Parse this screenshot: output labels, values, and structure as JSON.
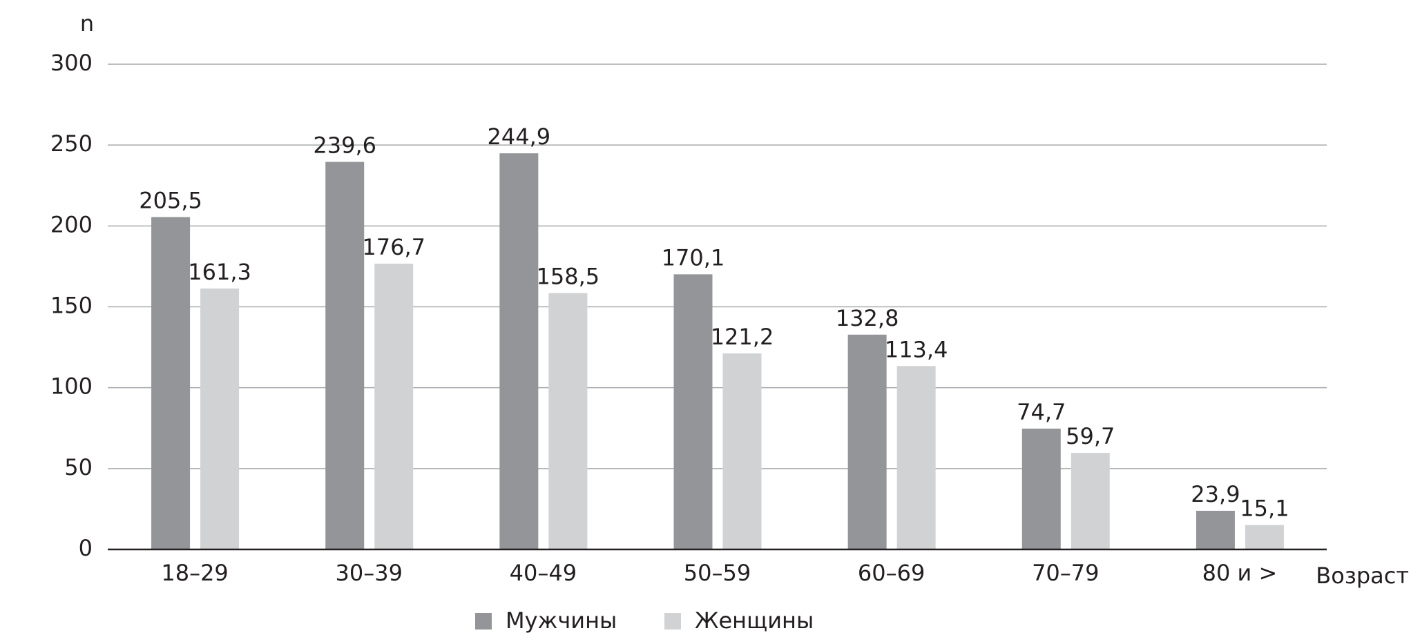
{
  "chart_data": {
    "type": "bar",
    "ylabel": "n",
    "xlabel": "Возраст",
    "categories": [
      "18–29",
      "30–39",
      "40–49",
      "50–59",
      "60–69",
      "70–79",
      "80 и >"
    ],
    "series": [
      {
        "name": "Мужчины",
        "color": "#939598",
        "values": [
          205.5,
          239.6,
          244.9,
          170.1,
          132.8,
          74.7,
          23.9
        ],
        "value_labels": [
          "205,5",
          "239,6",
          "244,9",
          "170,1",
          "132,8",
          "74,7",
          "23,9"
        ]
      },
      {
        "name": "Женщины",
        "color": "#d1d2d4",
        "values": [
          161.3,
          176.7,
          158.5,
          121.2,
          113.4,
          59.7,
          15.1
        ],
        "value_labels": [
          "161,3",
          "176,7",
          "158,5",
          "121,2",
          "113,4",
          "59,7",
          "15,1"
        ]
      }
    ],
    "ylim": [
      0,
      300
    ],
    "yticks": [
      0,
      50,
      100,
      150,
      200,
      250,
      300
    ],
    "grid": true,
    "legend": "bottom"
  }
}
